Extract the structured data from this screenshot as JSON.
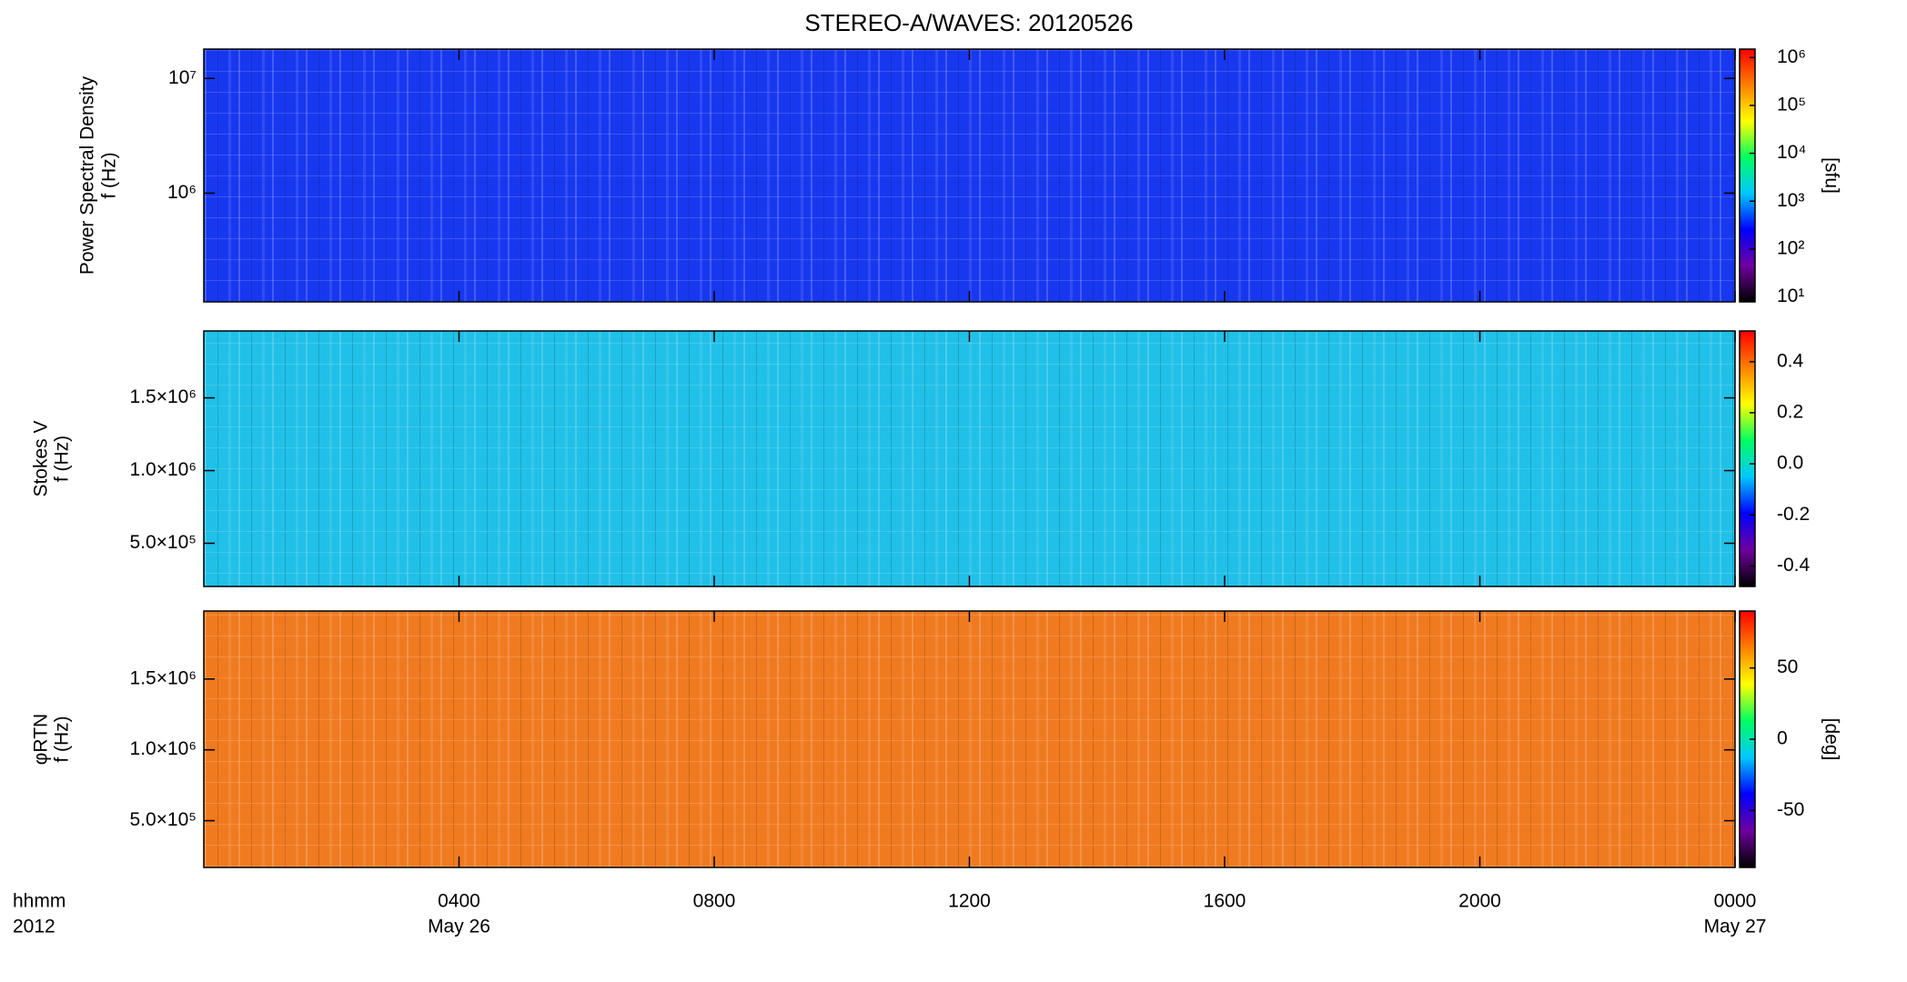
{
  "chart_data": [
    {
      "type": "heatmap",
      "title": "STEREO-A/WAVES: 20120526",
      "ylabel": [
        "Power Spectral Density",
        "f (Hz)"
      ],
      "log_y": true,
      "ylim": [
        113000,
        18000000
      ],
      "yticks": [
        {
          "value": 1000000,
          "label": "10⁶"
        },
        {
          "value": 10000000,
          "label": "10⁷"
        }
      ],
      "xlim": [
        0,
        24
      ],
      "color": "#1838f0",
      "colorbar": {
        "label": "[sfu]",
        "log": true,
        "lim": [
          7.9,
          1500000
        ],
        "ticks": [
          {
            "value": 10,
            "label": "10¹"
          },
          {
            "value": 100,
            "label": "10²"
          },
          {
            "value": 1000,
            "label": "10³"
          },
          {
            "value": 10000,
            "label": "10⁴"
          },
          {
            "value": 100000,
            "label": "10⁵"
          },
          {
            "value": 1000000,
            "label": "10⁶"
          }
        ],
        "colormap": [
          "#000000",
          "#7000a0",
          "#0000ff",
          "#00c8ff",
          "#00ff60",
          "#ffff00",
          "#ff8000",
          "#ff0000"
        ]
      }
    },
    {
      "type": "heatmap",
      "ylabel": [
        "Stokes V",
        "f (Hz)"
      ],
      "log_y": false,
      "ylim": [
        203000,
        1960000
      ],
      "yticks": [
        {
          "value": 500000,
          "label": "5.0×10⁵"
        },
        {
          "value": 1000000,
          "label": "1.0×10⁶"
        },
        {
          "value": 1500000,
          "label": "1.5×10⁶"
        }
      ],
      "xlim": [
        0,
        24
      ],
      "color": "#20c0e8",
      "colorbar": {
        "log": false,
        "lim": [
          -0.48,
          0.52
        ],
        "ticks": [
          {
            "value": -0.4,
            "label": "-0.4"
          },
          {
            "value": -0.2,
            "label": "-0.2"
          },
          {
            "value": 0,
            "label": "0.0"
          },
          {
            "value": 0.2,
            "label": "0.2"
          },
          {
            "value": 0.4,
            "label": "0.4"
          }
        ],
        "colormap": [
          "#000000",
          "#7000a0",
          "#0000ff",
          "#00c8ff",
          "#00ff60",
          "#ffff00",
          "#ff8000",
          "#ff0000"
        ]
      }
    },
    {
      "type": "heatmap",
      "ylabel": [
        "φRTN",
        "f (Hz)"
      ],
      "log_y": false,
      "ylim": [
        170000,
        1980000
      ],
      "yticks": [
        {
          "value": 500000,
          "label": "5.0×10⁵"
        },
        {
          "value": 1000000,
          "label": "1.0×10⁶"
        },
        {
          "value": 1500000,
          "label": "1.5×10⁶"
        }
      ],
      "xlim": [
        0,
        24
      ],
      "color": "#f07a20",
      "xticks": [
        {
          "value": 4,
          "label": "0400"
        },
        {
          "value": 8,
          "label": "0800"
        },
        {
          "value": 12,
          "label": "1200"
        },
        {
          "value": 16,
          "label": "1600"
        },
        {
          "value": 20,
          "label": "2000"
        },
        {
          "value": 24,
          "label": "0000"
        }
      ],
      "date_labels": [
        {
          "value": 4,
          "label": "May 26"
        },
        {
          "value": 24,
          "label": "May 27"
        }
      ],
      "xlabel": [
        "hhmm",
        "2012"
      ],
      "colorbar": {
        "label": "[deg]",
        "log": false,
        "lim": [
          -90,
          90
        ],
        "ticks": [
          -50,
          0,
          50
        ],
        "colormap": [
          "#000000",
          "#7000a0",
          "#0000ff",
          "#00c8ff",
          "#00ff60",
          "#ffff00",
          "#ff8000",
          "#ff0000"
        ]
      }
    }
  ]
}
